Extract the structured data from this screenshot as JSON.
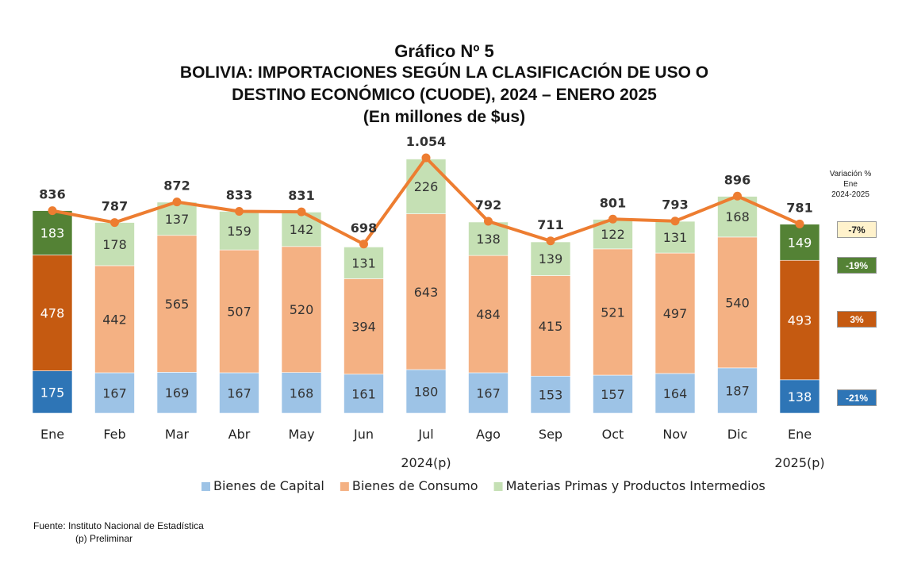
{
  "title": {
    "line1": "Gráfico Nº 5",
    "line2": "BOLIVIA: IMPORTACIONES SEGÚN LA CLASIFICACIÓN DE USO O",
    "line3": "DESTINO ECONÓMICO (CUODE), 2024 – ENERO 2025",
    "line4": "(En millones de $us)"
  },
  "chart_data": {
    "type": "bar",
    "stacked": true,
    "categories": [
      "Ene",
      "Feb",
      "Mar",
      "Abr",
      "May",
      "Jun",
      "Jul",
      "Ago",
      "Sep",
      "Oct",
      "Nov",
      "Dic",
      "Ene"
    ],
    "period_labels": [
      {
        "label": "2024(p)",
        "categories": [
          "Feb",
          "Mar",
          "Abr",
          "May",
          "Jun",
          "Jul",
          "Ago",
          "Sep",
          "Oct",
          "Nov",
          "Dic"
        ]
      },
      {
        "label": "2025(p)",
        "categories": [
          "Ene"
        ]
      }
    ],
    "series": [
      {
        "name": "Bienes de Capital",
        "values": [
          175,
          167,
          169,
          167,
          168,
          161,
          180,
          167,
          153,
          157,
          164,
          187,
          138
        ],
        "color": "#9dc3e6",
        "highlight_color": "#2e75b6"
      },
      {
        "name": "Bienes de Consumo",
        "values": [
          478,
          442,
          565,
          507,
          520,
          394,
          643,
          484,
          415,
          521,
          497,
          540,
          493
        ],
        "color": "#f4b183",
        "highlight_color": "#c55a11"
      },
      {
        "name": "Materias Primas y Productos Intermedios",
        "values": [
          183,
          178,
          137,
          159,
          142,
          131,
          226,
          138,
          139,
          122,
          131,
          168,
          149
        ],
        "color": "#c5e0b4",
        "highlight_color": "#548235"
      }
    ],
    "highlighted_categories": [
      0,
      12
    ],
    "totals": {
      "labels": [
        "836",
        "787",
        "872",
        "833",
        "831",
        "698",
        "1.054",
        "792",
        "711",
        "801",
        "793",
        "896",
        "781"
      ],
      "values": [
        836,
        787,
        872,
        833,
        831,
        698,
        1054,
        792,
        711,
        801,
        793,
        896,
        781
      ],
      "line_color": "#ed7d31"
    },
    "ylim": [
      0,
      1100
    ],
    "grid": false,
    "legend_position": "bottom"
  },
  "variation": {
    "header": [
      "Variación %",
      "Ene",
      "2024-2025"
    ],
    "badges": [
      {
        "label": "-7%",
        "series": "total",
        "bg": "#fff2cc",
        "fg": "#222222"
      },
      {
        "label": "-19%",
        "series": "Materias Primas y Productos Intermedios",
        "bg": "#548235",
        "fg": "#ffffff"
      },
      {
        "label": "3%",
        "series": "Bienes de Consumo",
        "bg": "#c55a11",
        "fg": "#ffffff"
      },
      {
        "label": "-21%",
        "series": "Bienes de Capital",
        "bg": "#2e75b6",
        "fg": "#ffffff"
      }
    ]
  },
  "footer": {
    "source": "Fuente: Instituto Nacional de Estadística",
    "note": "(p) Preliminar"
  }
}
